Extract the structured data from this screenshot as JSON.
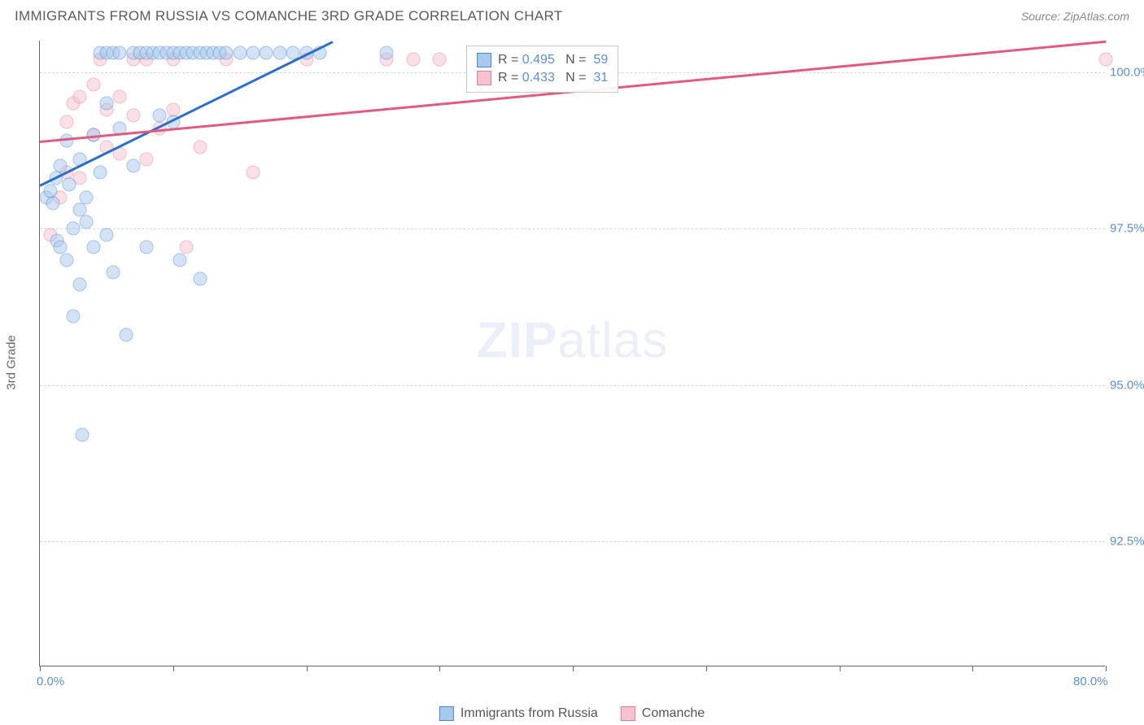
{
  "title": "IMMIGRANTS FROM RUSSIA VS COMANCHE 3RD GRADE CORRELATION CHART",
  "source": "Source: ZipAtlas.com",
  "ylabel": "3rd Grade",
  "watermark_zip": "ZIP",
  "watermark_atlas": "atlas",
  "chart": {
    "type": "scatter",
    "xlim": [
      0,
      80
    ],
    "ylim": [
      90.5,
      100.5
    ],
    "xtick_positions": [
      0,
      10,
      20,
      30,
      40,
      50,
      60,
      70,
      80
    ],
    "xtick_labels": {
      "0": "0.0%",
      "80": "80.0%"
    },
    "ytick_positions": [
      92.5,
      95.0,
      97.5,
      100.0
    ],
    "ytick_labels": [
      "92.5%",
      "95.0%",
      "97.5%",
      "100.0%"
    ],
    "grid_color": "#d8d8d8",
    "axis_color": "#666666",
    "background_color": "#ffffff",
    "tick_label_color": "#5b8fd6",
    "marker_size": 17,
    "marker_opacity": 0.5,
    "series": [
      {
        "name": "Immigrants from Russia",
        "fill": "#a8c8ec",
        "stroke": "#4a86cf",
        "line_color": "#2a6fc9",
        "R": "0.495",
        "N": "59",
        "trend": {
          "x1": 0,
          "y1": 98.2,
          "x2": 22,
          "y2": 100.5
        },
        "points": [
          [
            0.5,
            98.0
          ],
          [
            0.8,
            98.1
          ],
          [
            1.0,
            97.9
          ],
          [
            1.2,
            98.3
          ],
          [
            1.3,
            97.3
          ],
          [
            1.5,
            98.5
          ],
          [
            1.5,
            97.2
          ],
          [
            2.0,
            98.9
          ],
          [
            2.0,
            97.0
          ],
          [
            2.2,
            98.2
          ],
          [
            2.5,
            97.5
          ],
          [
            2.5,
            96.1
          ],
          [
            3.0,
            98.6
          ],
          [
            3.0,
            97.8
          ],
          [
            3.0,
            96.6
          ],
          [
            3.2,
            94.2
          ],
          [
            3.5,
            98.0
          ],
          [
            3.5,
            97.6
          ],
          [
            4.0,
            99.0
          ],
          [
            4.0,
            97.2
          ],
          [
            4.5,
            100.3
          ],
          [
            4.5,
            98.4
          ],
          [
            5.0,
            100.3
          ],
          [
            5.0,
            99.5
          ],
          [
            5.0,
            97.4
          ],
          [
            5.5,
            100.3
          ],
          [
            5.5,
            96.8
          ],
          [
            6.0,
            100.3
          ],
          [
            6.0,
            99.1
          ],
          [
            6.5,
            95.8
          ],
          [
            7.0,
            100.3
          ],
          [
            7.0,
            98.5
          ],
          [
            7.5,
            100.3
          ],
          [
            8.0,
            100.3
          ],
          [
            8.0,
            97.2
          ],
          [
            8.5,
            100.3
          ],
          [
            9.0,
            100.3
          ],
          [
            9.0,
            99.3
          ],
          [
            9.5,
            100.3
          ],
          [
            10.0,
            100.3
          ],
          [
            10.0,
            99.2
          ],
          [
            10.5,
            100.3
          ],
          [
            10.5,
            97.0
          ],
          [
            11.0,
            100.3
          ],
          [
            11.5,
            100.3
          ],
          [
            12.0,
            100.3
          ],
          [
            12.0,
            96.7
          ],
          [
            12.5,
            100.3
          ],
          [
            13.0,
            100.3
          ],
          [
            13.5,
            100.3
          ],
          [
            14.0,
            100.3
          ],
          [
            15.0,
            100.3
          ],
          [
            16.0,
            100.3
          ],
          [
            17.0,
            100.3
          ],
          [
            18.0,
            100.3
          ],
          [
            19.0,
            100.3
          ],
          [
            20.0,
            100.3
          ],
          [
            21.0,
            100.3
          ],
          [
            26.0,
            100.3
          ]
        ]
      },
      {
        "name": "Comanche",
        "fill": "#f5c2cf",
        "stroke": "#e37b99",
        "line_color": "#e05a82",
        "R": "0.433",
        "N": "31",
        "trend": {
          "x1": 0,
          "y1": 98.9,
          "x2": 80,
          "y2": 100.5
        },
        "points": [
          [
            0.8,
            97.4
          ],
          [
            1.5,
            98.0
          ],
          [
            2.0,
            99.2
          ],
          [
            2.0,
            98.4
          ],
          [
            2.5,
            99.5
          ],
          [
            3.0,
            99.6
          ],
          [
            3.0,
            98.3
          ],
          [
            4.0,
            99.8
          ],
          [
            4.0,
            99.0
          ],
          [
            4.5,
            100.2
          ],
          [
            5.0,
            99.4
          ],
          [
            5.0,
            98.8
          ],
          [
            6.0,
            99.6
          ],
          [
            6.0,
            98.7
          ],
          [
            7.0,
            100.2
          ],
          [
            7.0,
            99.3
          ],
          [
            8.0,
            100.2
          ],
          [
            8.0,
            98.6
          ],
          [
            9.0,
            99.1
          ],
          [
            10.0,
            100.2
          ],
          [
            10.0,
            99.4
          ],
          [
            11.0,
            97.2
          ],
          [
            12.0,
            98.8
          ],
          [
            14.0,
            100.2
          ],
          [
            16.0,
            98.4
          ],
          [
            20.0,
            100.2
          ],
          [
            26.0,
            100.2
          ],
          [
            28.0,
            100.2
          ],
          [
            30.0,
            100.2
          ],
          [
            38.0,
            100.2
          ],
          [
            80.0,
            100.2
          ]
        ]
      }
    ]
  },
  "legend": {
    "R_label": "R =",
    "N_label": "N ="
  },
  "bottom_legend": [
    {
      "label": "Immigrants from Russia",
      "fill": "#a8c8ec",
      "stroke": "#4a86cf"
    },
    {
      "label": "Comanche",
      "fill": "#f5c2cf",
      "stroke": "#e37b99"
    }
  ]
}
